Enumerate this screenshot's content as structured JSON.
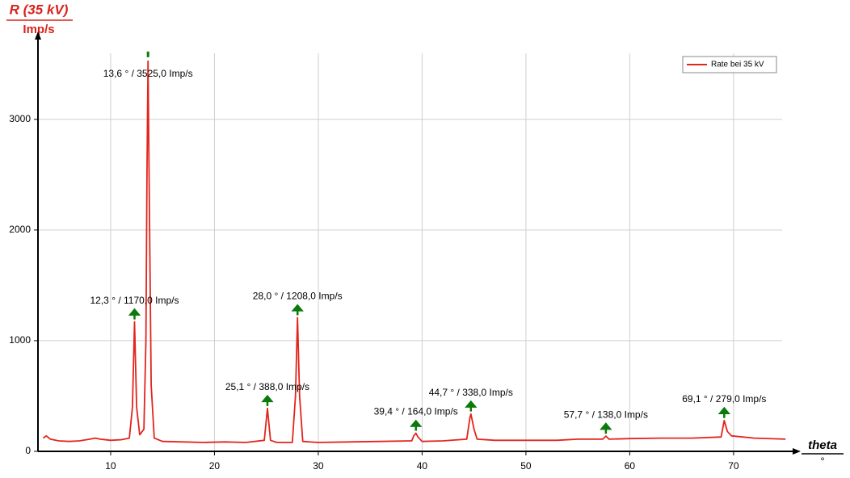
{
  "chart_data": {
    "type": "line",
    "y_title": "R (35 kV)",
    "y_unit": "Imp/s",
    "x_title": "theta",
    "x_unit": "°",
    "xlim": [
      3,
      76
    ],
    "ylim": [
      0,
      3750
    ],
    "xticks": [
      10,
      20,
      30,
      40,
      50,
      60,
      70
    ],
    "yticks": [
      0,
      1000,
      2000,
      3000
    ],
    "grid": true,
    "legend": "upper right",
    "series": [
      {
        "name": "Rate bei 35 kV",
        "color": "#e3241c",
        "x": [
          3.5,
          3.8,
          4.2,
          5,
          6,
          7,
          8,
          8.5,
          9,
          10,
          11,
          11.8,
          12.1,
          12.3,
          12.5,
          12.8,
          13.2,
          13.4,
          13.5,
          13.6,
          13.7,
          13.9,
          14.2,
          15,
          17,
          19,
          21,
          23,
          24.8,
          25.1,
          25.4,
          26,
          27.5,
          27.8,
          28.0,
          28.2,
          28.5,
          30,
          33,
          36,
          39,
          39.2,
          39.4,
          39.6,
          40,
          42,
          44.3,
          44.6,
          44.7,
          45,
          45.3,
          47,
          50,
          53,
          55,
          57.4,
          57.7,
          58,
          60,
          63,
          66,
          68.8,
          69.1,
          69.4,
          69.8,
          72,
          75
        ],
        "values": [
          120,
          140,
          110,
          95,
          90,
          95,
          110,
          120,
          110,
          100,
          105,
          120,
          400,
          1170,
          400,
          150,
          200,
          1000,
          2500,
          3525,
          2500,
          600,
          120,
          90,
          85,
          80,
          85,
          80,
          100,
          388,
          100,
          80,
          80,
          500,
          1208,
          500,
          90,
          80,
          85,
          90,
          95,
          140,
          164,
          130,
          90,
          95,
          110,
          300,
          338,
          200,
          110,
          100,
          100,
          100,
          110,
          110,
          138,
          110,
          115,
          120,
          120,
          130,
          279,
          180,
          140,
          120,
          110
        ]
      }
    ],
    "peaks": [
      {
        "x": 12.3,
        "y": 1170,
        "label": "12,3 ° / 1170,0 Imp/s"
      },
      {
        "x": 13.6,
        "y": 3525,
        "label": "13,6 ° / 3525,0 Imp/s"
      },
      {
        "x": 25.1,
        "y": 388,
        "label": "25,1 ° / 388,0 Imp/s"
      },
      {
        "x": 28.0,
        "y": 1208,
        "label": "28,0 ° / 1208,0 Imp/s"
      },
      {
        "x": 39.4,
        "y": 164,
        "label": "39,4 ° / 164,0 Imp/s"
      },
      {
        "x": 44.7,
        "y": 338,
        "label": "44,7 ° / 338,0 Imp/s"
      },
      {
        "x": 57.7,
        "y": 138,
        "label": "57,7 ° / 138,0 Imp/s"
      },
      {
        "x": 69.1,
        "y": 279,
        "label": "69,1 ° / 279,0 Imp/s"
      }
    ]
  }
}
